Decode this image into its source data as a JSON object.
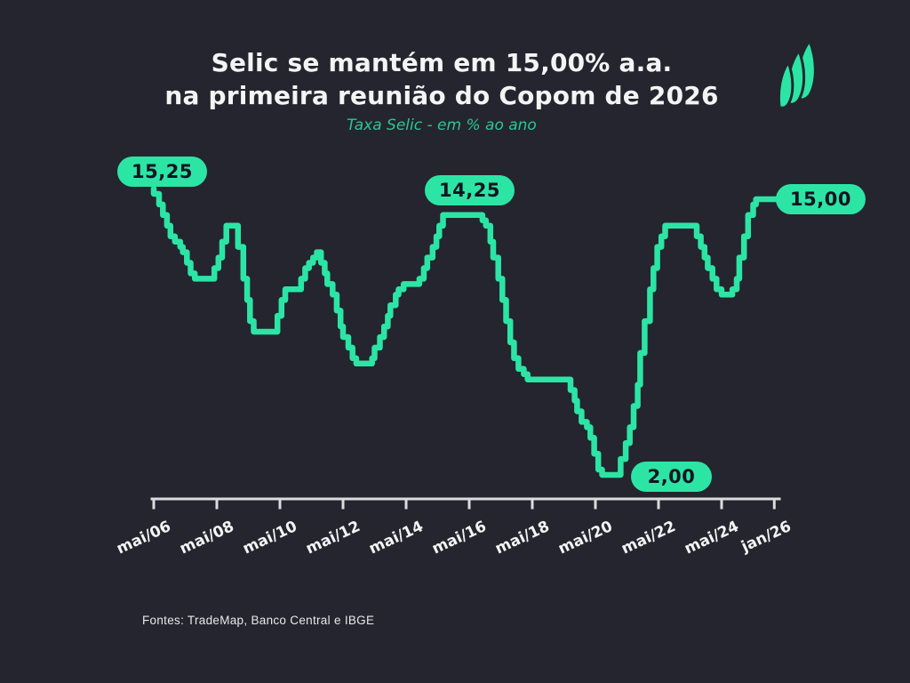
{
  "header": {
    "title_line1": "Selic se mantém em 15,00% a.a.",
    "title_line2": "na primeira reunião do Copom de 2026",
    "subtitle": "Taxa Selic - em % ao ano"
  },
  "footer": {
    "sources": "Fontes: TradeMap, Banco Central e IBGE"
  },
  "logo": {
    "name": "trademap-sails-logo"
  },
  "colors": {
    "background": "#24252f",
    "accent_green": "#2ce5a5",
    "subtitle_green": "#29c795",
    "pill_text": "#141420",
    "title_text": "#f4f4f4",
    "axis": "#dcdcdc"
  },
  "chart_data": {
    "type": "line",
    "subtype": "step",
    "title": "Selic se mantém em 15,00% a.a. na primeira reunião do Copom de 2026",
    "subtitle": "Taxa Selic - em % ao ano",
    "xlabel": "",
    "ylabel": "Taxa Selic (% ao ano)",
    "x_unit": "decimal_year",
    "xlim": [
      2006.37,
      2026.1
    ],
    "ylim": [
      2.0,
      15.25
    ],
    "grid": false,
    "legend": "none",
    "x_ticks": [
      {
        "year": 2006.37,
        "label": "mai/06"
      },
      {
        "year": 2008.37,
        "label": "mai/08"
      },
      {
        "year": 2010.37,
        "label": "mai/10"
      },
      {
        "year": 2012.37,
        "label": "mai/12"
      },
      {
        "year": 2014.37,
        "label": "mai/14"
      },
      {
        "year": 2016.37,
        "label": "mai/16"
      },
      {
        "year": 2018.37,
        "label": "mai/18"
      },
      {
        "year": 2020.37,
        "label": "mai/20"
      },
      {
        "year": 2022.37,
        "label": "mai/22"
      },
      {
        "year": 2024.37,
        "label": "mai/24"
      },
      {
        "year": 2026.04,
        "label": "jan/26"
      }
    ],
    "series": [
      {
        "name": "Taxa Selic",
        "points": [
          [
            2006.37,
            15.25
          ],
          [
            2006.54,
            14.75
          ],
          [
            2006.66,
            14.25
          ],
          [
            2006.79,
            13.75
          ],
          [
            2006.9,
            13.25
          ],
          [
            2007.04,
            13.0
          ],
          [
            2007.21,
            12.75
          ],
          [
            2007.29,
            12.5
          ],
          [
            2007.42,
            12.0
          ],
          [
            2007.54,
            11.5
          ],
          [
            2007.67,
            11.25
          ],
          [
            2008.29,
            11.75
          ],
          [
            2008.42,
            12.25
          ],
          [
            2008.54,
            13.0
          ],
          [
            2008.67,
            13.75
          ],
          [
            2009.04,
            12.75
          ],
          [
            2009.21,
            11.25
          ],
          [
            2009.33,
            10.25
          ],
          [
            2009.42,
            9.25
          ],
          [
            2009.54,
            8.75
          ],
          [
            2010.29,
            9.5
          ],
          [
            2010.42,
            10.25
          ],
          [
            2010.54,
            10.75
          ],
          [
            2011.04,
            11.25
          ],
          [
            2011.17,
            11.75
          ],
          [
            2011.29,
            12.0
          ],
          [
            2011.42,
            12.25
          ],
          [
            2011.54,
            12.5
          ],
          [
            2011.67,
            12.0
          ],
          [
            2011.79,
            11.5
          ],
          [
            2011.87,
            11.0
          ],
          [
            2012.04,
            10.5
          ],
          [
            2012.17,
            9.75
          ],
          [
            2012.29,
            9.0
          ],
          [
            2012.37,
            8.5
          ],
          [
            2012.54,
            8.0
          ],
          [
            2012.67,
            7.5
          ],
          [
            2012.79,
            7.25
          ],
          [
            2013.29,
            7.5
          ],
          [
            2013.37,
            8.0
          ],
          [
            2013.54,
            8.5
          ],
          [
            2013.67,
            9.0
          ],
          [
            2013.79,
            9.5
          ],
          [
            2013.87,
            10.0
          ],
          [
            2014.04,
            10.5
          ],
          [
            2014.13,
            10.75
          ],
          [
            2014.29,
            11.0
          ],
          [
            2014.79,
            11.25
          ],
          [
            2014.93,
            11.75
          ],
          [
            2015.04,
            12.25
          ],
          [
            2015.21,
            12.75
          ],
          [
            2015.33,
            13.25
          ],
          [
            2015.42,
            13.75
          ],
          [
            2015.54,
            14.25
          ],
          [
            2016.79,
            14.0
          ],
          [
            2016.9,
            13.75
          ],
          [
            2017.04,
            13.0
          ],
          [
            2017.13,
            12.25
          ],
          [
            2017.29,
            11.25
          ],
          [
            2017.42,
            10.25
          ],
          [
            2017.54,
            9.25
          ],
          [
            2017.67,
            8.25
          ],
          [
            2017.79,
            7.5
          ],
          [
            2017.93,
            7.0
          ],
          [
            2018.1,
            6.75
          ],
          [
            2018.22,
            6.5
          ],
          [
            2019.58,
            6.0
          ],
          [
            2019.71,
            5.5
          ],
          [
            2019.79,
            5.0
          ],
          [
            2019.93,
            4.5
          ],
          [
            2020.1,
            4.25
          ],
          [
            2020.21,
            3.75
          ],
          [
            2020.33,
            3.0
          ],
          [
            2020.46,
            2.25
          ],
          [
            2020.58,
            2.0
          ],
          [
            2021.17,
            2.75
          ],
          [
            2021.33,
            3.5
          ],
          [
            2021.46,
            4.25
          ],
          [
            2021.58,
            5.25
          ],
          [
            2021.71,
            6.25
          ],
          [
            2021.79,
            7.75
          ],
          [
            2021.93,
            9.25
          ],
          [
            2022.1,
            10.75
          ],
          [
            2022.21,
            11.75
          ],
          [
            2022.33,
            12.75
          ],
          [
            2022.46,
            13.25
          ],
          [
            2022.58,
            13.75
          ],
          [
            2023.58,
            13.25
          ],
          [
            2023.71,
            12.75
          ],
          [
            2023.83,
            12.25
          ],
          [
            2023.93,
            11.75
          ],
          [
            2024.08,
            11.25
          ],
          [
            2024.21,
            10.75
          ],
          [
            2024.37,
            10.5
          ],
          [
            2024.71,
            10.75
          ],
          [
            2024.85,
            11.25
          ],
          [
            2024.93,
            12.25
          ],
          [
            2025.08,
            13.25
          ],
          [
            2025.21,
            14.25
          ],
          [
            2025.37,
            14.75
          ],
          [
            2025.46,
            15.0
          ],
          [
            2026.04,
            15.0
          ]
        ]
      }
    ],
    "annotations": [
      {
        "x": 2006.37,
        "y": 15.25,
        "label": "15,25"
      },
      {
        "x": 2016.1,
        "y": 14.25,
        "label": "14,25"
      },
      {
        "x": 2020.8,
        "y": 2.0,
        "label": "2,00"
      },
      {
        "x": 2026.04,
        "y": 15.0,
        "label": "15,00"
      }
    ]
  }
}
